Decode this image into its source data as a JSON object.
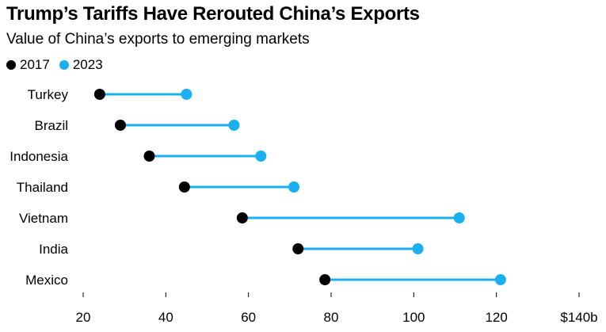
{
  "chart_data": {
    "type": "dumbbell",
    "title": "Trump’s Tariffs Have Rerouted China’s Exports",
    "subtitle": "Value of China’s exports to emerging markets",
    "categories": [
      "Turkey",
      "Brazil",
      "Indonesia",
      "Thailand",
      "Vietnam",
      "India",
      "Mexico"
    ],
    "series": [
      {
        "name": "2017",
        "color": "#000000",
        "values": [
          24,
          29,
          36,
          44.5,
          58.5,
          72,
          78.5
        ]
      },
      {
        "name": "2023",
        "color": "#1ab0f0",
        "values": [
          45,
          56.5,
          63,
          71,
          111,
          101,
          121
        ]
      }
    ],
    "connector_color": "#1ab0f0",
    "xlim": [
      20,
      140
    ],
    "x_ticks": [
      20,
      40,
      60,
      80,
      100,
      120,
      140
    ],
    "x_tick_labels": [
      "20",
      "40",
      "60",
      "80",
      "100",
      "120",
      "$140b"
    ],
    "legend_position": "top-left",
    "grid": false
  }
}
